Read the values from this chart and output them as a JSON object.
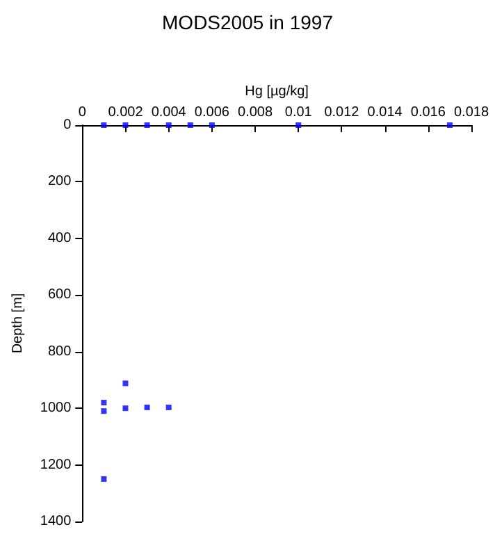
{
  "chart_data": {
    "type": "scatter",
    "title": "MODS2005 in 1997",
    "xlabel": "Hg [µg/kg]",
    "ylabel": "Depth [m]",
    "x": [
      0.001,
      0.002,
      0.003,
      0.004,
      0.005,
      0.006,
      0.01,
      0.017,
      0.002,
      0.001,
      0.001,
      0.002,
      0.003,
      0.004,
      0.001
    ],
    "values": [
      0,
      0,
      0,
      0,
      0,
      0,
      0,
      0,
      912,
      980,
      1010,
      1000,
      997,
      997,
      1250
    ],
    "color": "#0000ff",
    "marker": "square",
    "grid": false,
    "xlim": [
      0,
      0.018
    ],
    "xticks": [
      0,
      0.002,
      0.004,
      0.006,
      0.008,
      0.01,
      0.012,
      0.014,
      0.016,
      0.018
    ],
    "ylim": [
      1400,
      0
    ],
    "yticks": [
      0,
      200,
      400,
      600,
      800,
      1000,
      1200,
      1400
    ]
  }
}
